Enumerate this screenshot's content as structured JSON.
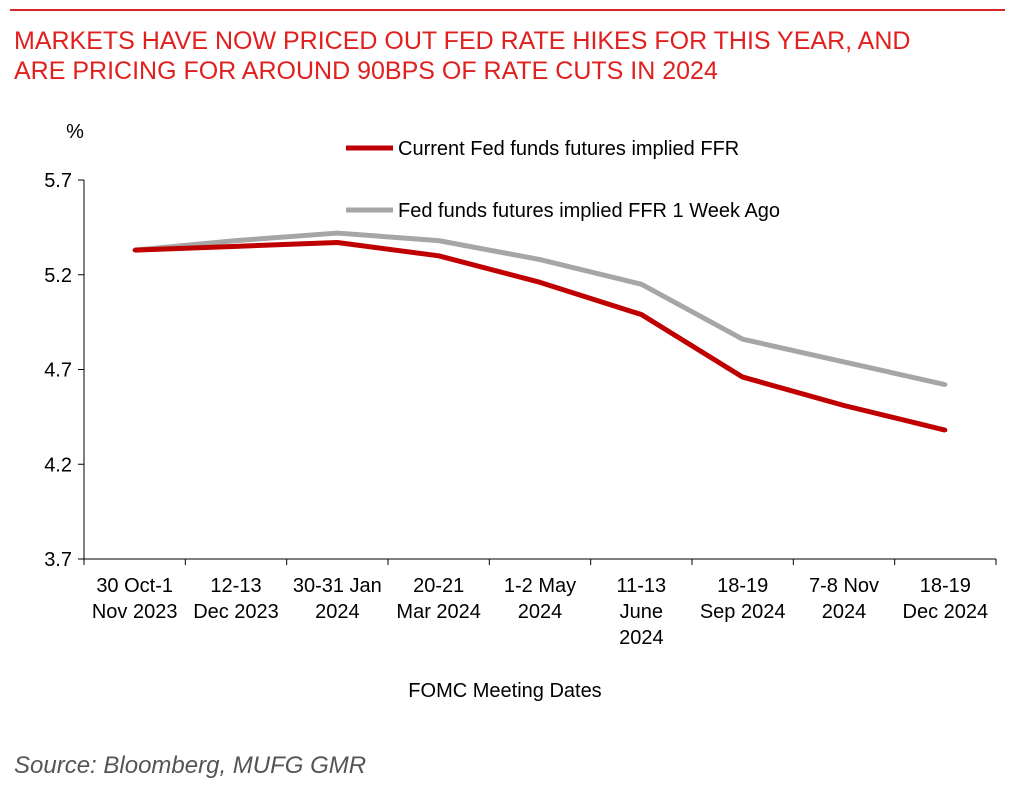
{
  "header": {
    "title_line1": "MARKETS HAVE NOW PRICED OUT FED RATE HIKES FOR THIS YEAR, AND",
    "title_line2": "ARE PRICING FOR AROUND 90BPS OF RATE CUTS IN 2024"
  },
  "footer": {
    "source": "Source: Bloomberg, MUFG GMR"
  },
  "colors": {
    "accent": "#e0201f",
    "current": "#c00000",
    "week_ago": "#a6a6a6"
  },
  "chart_data": {
    "type": "line",
    "title": "",
    "ylabel": "%",
    "xlabel": "FOMC Meeting Dates",
    "ylim": [
      3.7,
      5.7
    ],
    "yticks": [
      3.7,
      4.2,
      4.7,
      5.2,
      5.7
    ],
    "grid": false,
    "legend_position": "top-right",
    "categories": [
      [
        "30 Oct-1",
        "Nov 2023"
      ],
      [
        "12-13",
        "Dec 2023"
      ],
      [
        "30-31 Jan",
        "2024"
      ],
      [
        "20-21",
        "Mar 2024"
      ],
      [
        "1-2 May",
        "2024"
      ],
      [
        "11-13",
        "June",
        "2024"
      ],
      [
        "18-19",
        "Sep 2024"
      ],
      [
        "7-8 Nov",
        "2024"
      ],
      [
        "18-19",
        "Dec 2024"
      ]
    ],
    "series": [
      {
        "name": "Current Fed funds futures implied FFR",
        "color": "#c00000",
        "values": [
          5.33,
          5.35,
          5.37,
          5.3,
          5.16,
          4.99,
          4.66,
          4.51,
          4.38
        ]
      },
      {
        "name": "Fed funds futures implied FFR 1 Week Ago",
        "color": "#a6a6a6",
        "values": [
          5.33,
          5.38,
          5.42,
          5.38,
          5.28,
          5.15,
          4.86,
          4.74,
          4.62
        ]
      }
    ]
  }
}
